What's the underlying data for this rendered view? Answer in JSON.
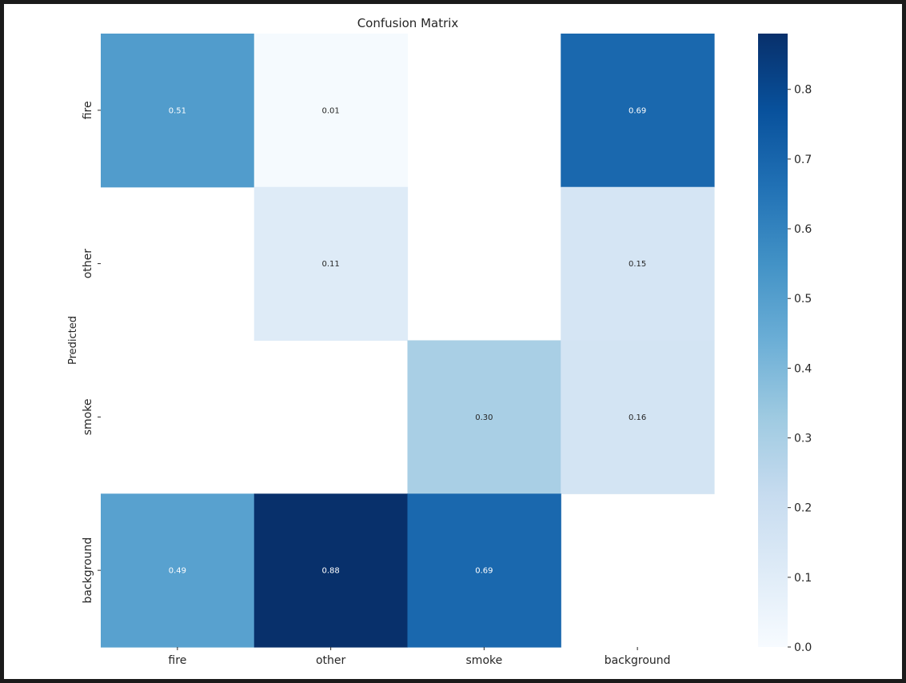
{
  "chart_data": {
    "type": "heatmap",
    "title": "Confusion Matrix",
    "xlabel": "",
    "ylabel": "Predicted",
    "x_categories": [
      "fire",
      "other",
      "smoke",
      "background"
    ],
    "y_categories": [
      "fire",
      "other",
      "smoke",
      "background"
    ],
    "values": [
      [
        0.51,
        0.01,
        null,
        0.69
      ],
      [
        null,
        0.11,
        null,
        0.15
      ],
      [
        null,
        null,
        0.3,
        0.16
      ],
      [
        0.49,
        0.88,
        0.69,
        null
      ]
    ],
    "cell_labels": [
      [
        "0.51",
        "0.01",
        "",
        "0.69"
      ],
      [
        "",
        "0.11",
        "",
        "0.15"
      ],
      [
        "",
        "",
        "0.30",
        "0.16"
      ],
      [
        "0.49",
        "0.88",
        "0.69",
        ""
      ]
    ],
    "colormap": "Blues",
    "colorbar": {
      "range": [
        0,
        0.88
      ],
      "ticks": [
        0.0,
        0.1,
        0.2,
        0.3,
        0.4,
        0.5,
        0.6,
        0.7,
        0.8
      ],
      "tick_labels": [
        "0.0",
        "0.1",
        "0.2",
        "0.3",
        "0.4",
        "0.5",
        "0.6",
        "0.7",
        "0.8"
      ]
    },
    "grid": false
  },
  "colors": {
    "frame": "#1b1b1b",
    "background": "#ffffff",
    "text": "#262626"
  }
}
